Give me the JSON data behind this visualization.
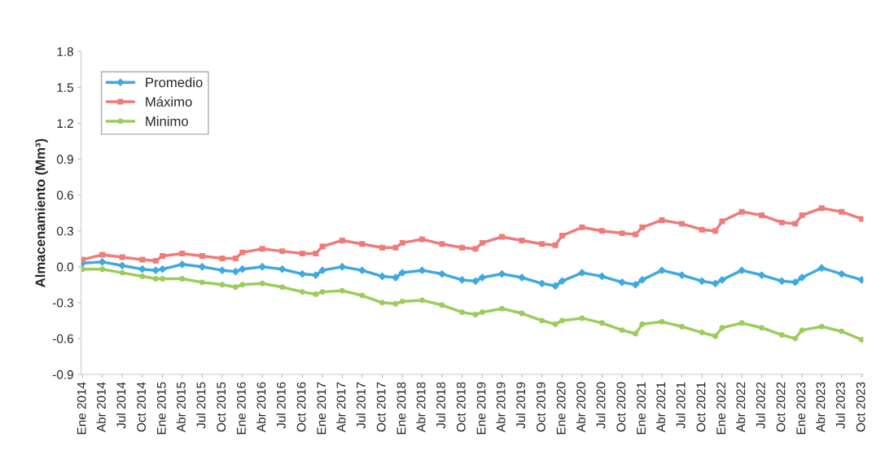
{
  "chart_data": {
    "type": "line",
    "ylabel": "Almacenamiento (Mm³)",
    "x": [
      "2014-01",
      "2014-04",
      "2014-07",
      "2014-10",
      "2014-12",
      "2015-01",
      "2015-04",
      "2015-07",
      "2015-10",
      "2015-12",
      "2016-01",
      "2016-04",
      "2016-07",
      "2016-10",
      "2016-12",
      "2017-01",
      "2017-04",
      "2017-07",
      "2017-10",
      "2017-12",
      "2018-01",
      "2018-04",
      "2018-07",
      "2018-10",
      "2018-12",
      "2019-01",
      "2019-04",
      "2019-07",
      "2019-10",
      "2019-12",
      "2020-01",
      "2020-04",
      "2020-07",
      "2020-10",
      "2020-12",
      "2021-01",
      "2021-04",
      "2021-07",
      "2021-10",
      "2021-12",
      "2022-01",
      "2022-04",
      "2022-07",
      "2022-10",
      "2022-12",
      "2023-01",
      "2023-04",
      "2023-07",
      "2023-10"
    ],
    "series": [
      {
        "name": "Promedio",
        "color": "#3fa9e0",
        "marker": "diamond",
        "values": [
          0.03,
          0.04,
          0.01,
          -0.02,
          -0.03,
          -0.02,
          0.02,
          0.0,
          -0.03,
          -0.04,
          -0.02,
          0.0,
          -0.02,
          -0.06,
          -0.07,
          -0.03,
          0.0,
          -0.03,
          -0.08,
          -0.09,
          -0.05,
          -0.03,
          -0.06,
          -0.11,
          -0.12,
          -0.09,
          -0.06,
          -0.09,
          -0.14,
          -0.16,
          -0.12,
          -0.05,
          -0.08,
          -0.13,
          -0.15,
          -0.11,
          -0.03,
          -0.07,
          -0.12,
          -0.14,
          -0.11,
          -0.03,
          -0.07,
          -0.12,
          -0.13,
          -0.09,
          -0.01,
          -0.06,
          -0.11
        ]
      },
      {
        "name": "Máximo",
        "color": "#ef7b7b",
        "marker": "square",
        "values": [
          0.06,
          0.1,
          0.08,
          0.06,
          0.05,
          0.09,
          0.11,
          0.09,
          0.07,
          0.07,
          0.12,
          0.15,
          0.13,
          0.11,
          0.11,
          0.17,
          0.22,
          0.19,
          0.16,
          0.16,
          0.2,
          0.23,
          0.19,
          0.16,
          0.15,
          0.2,
          0.25,
          0.22,
          0.19,
          0.18,
          0.26,
          0.33,
          0.3,
          0.28,
          0.27,
          0.33,
          0.39,
          0.36,
          0.31,
          0.3,
          0.38,
          0.46,
          0.43,
          0.37,
          0.36,
          0.43,
          0.49,
          0.46,
          0.4
        ]
      },
      {
        "name": "Minimo",
        "color": "#9ccc5c",
        "marker": "circle",
        "values": [
          -0.02,
          -0.02,
          -0.05,
          -0.08,
          -0.1,
          -0.1,
          -0.1,
          -0.13,
          -0.15,
          -0.17,
          -0.15,
          -0.14,
          -0.17,
          -0.21,
          -0.23,
          -0.21,
          -0.2,
          -0.24,
          -0.3,
          -0.31,
          -0.29,
          -0.28,
          -0.32,
          -0.38,
          -0.4,
          -0.38,
          -0.35,
          -0.39,
          -0.45,
          -0.48,
          -0.45,
          -0.43,
          -0.47,
          -0.53,
          -0.56,
          -0.48,
          -0.46,
          -0.5,
          -0.55,
          -0.58,
          -0.51,
          -0.47,
          -0.51,
          -0.57,
          -0.6,
          -0.53,
          -0.5,
          -0.54,
          -0.61
        ]
      }
    ],
    "xlim": [
      "2013-12-25",
      "2023-10-08"
    ],
    "xticks": [
      {
        "value": "2014-01",
        "label": "Ene 2014"
      },
      {
        "value": "2014-04",
        "label": "Abr 2014"
      },
      {
        "value": "2014-07",
        "label": "Jul 2014"
      },
      {
        "value": "2014-10",
        "label": "Oct 2014"
      },
      {
        "value": "2015-01",
        "label": "Ene 2015"
      },
      {
        "value": "2015-04",
        "label": "Abr 2015"
      },
      {
        "value": "2015-07",
        "label": "Jul 2015"
      },
      {
        "value": "2015-10",
        "label": "Oct 2015"
      },
      {
        "value": "2016-01",
        "label": "Ene 2016"
      },
      {
        "value": "2016-04",
        "label": "Abr 2016"
      },
      {
        "value": "2016-07",
        "label": "Jul 2016"
      },
      {
        "value": "2016-10",
        "label": "Oct 2016"
      },
      {
        "value": "2017-01",
        "label": "Ene 2017"
      },
      {
        "value": "2017-04",
        "label": "Abr 2017"
      },
      {
        "value": "2017-07",
        "label": "Jul 2017"
      },
      {
        "value": "2017-10",
        "label": "Oct 2017"
      },
      {
        "value": "2018-01",
        "label": "Ene 2018"
      },
      {
        "value": "2018-04",
        "label": "Abr 2018"
      },
      {
        "value": "2018-07",
        "label": "Jul 2018"
      },
      {
        "value": "2018-10",
        "label": "Oct 2018"
      },
      {
        "value": "2019-01",
        "label": "Ene 2019"
      },
      {
        "value": "2019-04",
        "label": "Abr 2019"
      },
      {
        "value": "2019-07",
        "label": "Jul 2019"
      },
      {
        "value": "2019-10",
        "label": "Oct 2019"
      },
      {
        "value": "2020-01",
        "label": "Ene 2020"
      },
      {
        "value": "2020-04",
        "label": "Abr 2020"
      },
      {
        "value": "2020-07",
        "label": "Jul 2020"
      },
      {
        "value": "2020-10",
        "label": "Oct 2020"
      },
      {
        "value": "2021-01",
        "label": "Ene 2021"
      },
      {
        "value": "2021-04",
        "label": "Abr 2021"
      },
      {
        "value": "2021-07",
        "label": "Jul 2021"
      },
      {
        "value": "2021-10",
        "label": "Oct 2021"
      },
      {
        "value": "2022-01",
        "label": "Ene 2022"
      },
      {
        "value": "2022-04",
        "label": "Abr 2022"
      },
      {
        "value": "2022-07",
        "label": "Jul 2022"
      },
      {
        "value": "2022-10",
        "label": "Oct 2022"
      },
      {
        "value": "2023-01",
        "label": "Ene 2023"
      },
      {
        "value": "2023-04",
        "label": "Abr 2023"
      },
      {
        "value": "2023-07",
        "label": "Jul 2023"
      },
      {
        "value": "2023-10",
        "label": "Oct 2023"
      }
    ],
    "ylim": [
      -0.9,
      1.8
    ],
    "yticks": [
      -0.9,
      -0.6,
      -0.3,
      {
        "value": 0,
        "label": "0.0"
      },
      0.3,
      0.6,
      0.9,
      1.2,
      1.5,
      1.8
    ],
    "grid": false,
    "legend": "top left",
    "line_style": "solid"
  }
}
